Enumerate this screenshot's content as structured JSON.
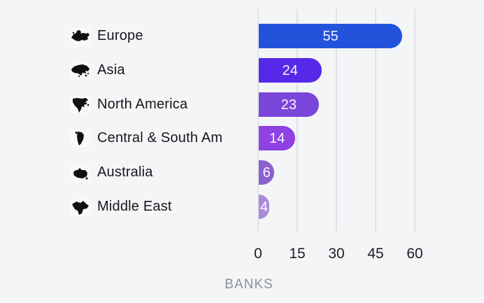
{
  "chart_data": {
    "type": "bar",
    "orientation": "horizontal",
    "xlabel": "BANKS",
    "categories": [
      "Europe",
      "Asia",
      "North America",
      "Central & South Am",
      "Australia",
      "Middle East"
    ],
    "values": [
      55,
      24,
      23,
      14,
      6,
      4
    ],
    "bar_colors": [
      "#2453db",
      "#5629e8",
      "#7b46da",
      "#8f41e4",
      "#8a5fce",
      "#a78ad8"
    ],
    "icons": [
      "europe-map-icon",
      "asia-map-icon",
      "north-america-map-icon",
      "south-america-map-icon",
      "australia-map-icon",
      "middle-east-map-icon"
    ],
    "x_ticks": [
      0,
      15,
      30,
      45,
      60
    ],
    "xlim": [
      0,
      60
    ],
    "grid": "vertical-only",
    "legend": "none",
    "value_labels": "centered-inside-bars",
    "background_color": "#f4f5f6",
    "gridline_color": "#e0e0e6",
    "icon_color": "#101114"
  }
}
